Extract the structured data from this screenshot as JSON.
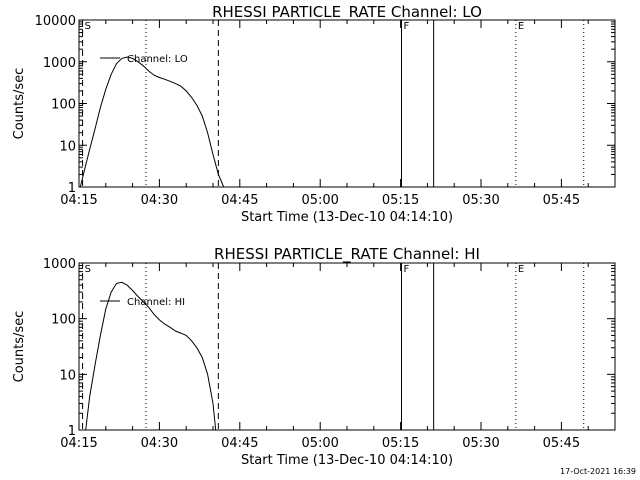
{
  "chart_data": [
    {
      "type": "line",
      "title": "RHESSI PARTICLE_RATE Channel: LO",
      "xlabel": "Start Time (13-Dec-10 04:14:10)",
      "ylabel": "Counts/sec",
      "yscale": "log",
      "xlim": [
        "04:15",
        "05:55"
      ],
      "ylim": [
        1,
        10000
      ],
      "x_ticks": [
        "04:15",
        "04:30",
        "04:45",
        "05:00",
        "05:15",
        "05:30",
        "05:45"
      ],
      "y_ticks": [
        "1",
        "10",
        "100",
        "1000",
        "10000"
      ],
      "grid": false,
      "legend": {
        "entries": [
          "Channel: LO"
        ],
        "position": "top-left"
      },
      "series": [
        {
          "name": "Channel: LO",
          "x": [
            "04:15:15",
            "04:16:00",
            "04:17:00",
            "04:18:00",
            "04:19:00",
            "04:20:00",
            "04:21:00",
            "04:22:00",
            "04:23:00",
            "04:24:00",
            "04:25:00",
            "04:26:00",
            "04:27:00",
            "04:28:00",
            "04:29:00",
            "04:30:00",
            "04:31:00",
            "04:32:00",
            "04:33:00",
            "04:34:00",
            "04:35:00",
            "04:36:00",
            "04:37:00",
            "04:38:00",
            "04:39:00",
            "04:40:00",
            "04:41:00",
            "04:42:00"
          ],
          "values": [
            1,
            2.5,
            8,
            25,
            80,
            220,
            500,
            900,
            1200,
            1300,
            1200,
            1000,
            800,
            600,
            480,
            420,
            380,
            340,
            300,
            260,
            200,
            140,
            90,
            50,
            20,
            6,
            2,
            1
          ]
        }
      ],
      "markers": [
        {
          "time": "04:15:40",
          "style": "dashed",
          "label": "S"
        },
        {
          "time": "04:27:30",
          "style": "dotted",
          "label": ""
        },
        {
          "time": "04:41:00",
          "style": "dashed",
          "label": ""
        },
        {
          "time": "05:15:10",
          "style": "solid",
          "label": "F"
        },
        {
          "time": "05:21:10",
          "style": "solid",
          "label": ""
        },
        {
          "time": "05:36:30",
          "style": "dotted",
          "label": "E"
        },
        {
          "time": "05:49:10",
          "style": "dotted",
          "label": ""
        }
      ]
    },
    {
      "type": "line",
      "title": "RHESSI PARTICLE_RATE Channel: HI",
      "xlabel": "Start Time (13-Dec-10 04:14:10)",
      "ylabel": "Counts/sec",
      "yscale": "log",
      "xlim": [
        "04:15",
        "05:55"
      ],
      "ylim": [
        1,
        1000
      ],
      "x_ticks": [
        "04:15",
        "04:30",
        "04:45",
        "05:00",
        "05:15",
        "05:30",
        "05:45"
      ],
      "y_ticks": [
        "1",
        "10",
        "100",
        "1000"
      ],
      "grid": false,
      "legend": {
        "entries": [
          "Channel: HI"
        ],
        "position": "top-left"
      },
      "series": [
        {
          "name": "Channel: HI",
          "x": [
            "04:16:15",
            "04:17:00",
            "04:18:00",
            "04:19:00",
            "04:20:00",
            "04:21:00",
            "04:22:00",
            "04:23:00",
            "04:24:00",
            "04:25:00",
            "04:26:00",
            "04:27:00",
            "04:28:00",
            "04:29:00",
            "04:30:00",
            "04:31:00",
            "04:32:00",
            "04:33:00",
            "04:34:00",
            "04:35:00",
            "04:36:00",
            "04:37:00",
            "04:38:00",
            "04:39:00",
            "04:40:00",
            "04:40:30"
          ],
          "values": [
            1,
            4,
            15,
            50,
            150,
            300,
            430,
            450,
            400,
            320,
            250,
            200,
            160,
            120,
            95,
            80,
            70,
            60,
            55,
            50,
            40,
            30,
            20,
            10,
            3,
            1
          ]
        }
      ],
      "markers": [
        {
          "time": "04:15:40",
          "style": "dashed",
          "label": "S"
        },
        {
          "time": "04:27:30",
          "style": "dotted",
          "label": ""
        },
        {
          "time": "04:41:00",
          "style": "dashed",
          "label": ""
        },
        {
          "time": "05:15:10",
          "style": "solid",
          "label": "F"
        },
        {
          "time": "05:21:10",
          "style": "solid",
          "label": ""
        },
        {
          "time": "05:36:30",
          "style": "dotted",
          "label": "E"
        },
        {
          "time": "05:49:10",
          "style": "dotted",
          "label": ""
        }
      ]
    }
  ],
  "footer": {
    "timestamp": "17-Oct-2021 16:39"
  }
}
